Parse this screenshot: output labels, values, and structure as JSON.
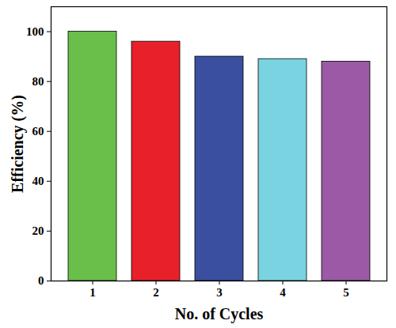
{
  "chart_data": {
    "type": "bar",
    "xlabel": "No. of Cycles",
    "ylabel": "Efficiency (%)",
    "categories": [
      "1",
      "2",
      "3",
      "4",
      "5"
    ],
    "values": [
      100,
      96,
      90,
      89,
      88
    ],
    "colors": [
      "#6abf4b",
      "#e8202a",
      "#3a4fa0",
      "#7ad3e0",
      "#9b59a6"
    ],
    "ylim": [
      0,
      110
    ],
    "yticks": [
      0,
      20,
      40,
      60,
      80,
      100
    ],
    "grid": false
  }
}
